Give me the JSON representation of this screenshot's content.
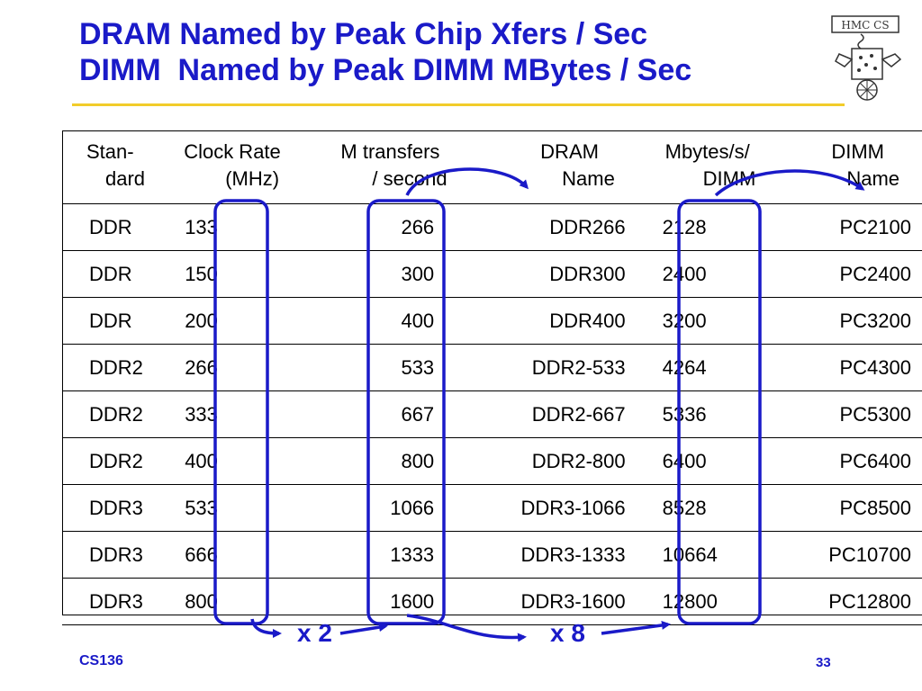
{
  "slide": {
    "title_lines": [
      "DRAM Named by Peak Chip Xfers / Sec",
      "DIMM  Named by Peak DIMM MBytes / Sec"
    ],
    "logo_text": "HMC CS"
  },
  "table": {
    "headers": [
      {
        "line1": "Stan-",
        "line2": "dard"
      },
      {
        "line1": "Clock Rate",
        "line2": "(MHz)"
      },
      {
        "line1": "M transfers",
        "line2": "/ second"
      },
      {
        "line1": "DRAM",
        "line2": "Name"
      },
      {
        "line1": "Mbytes/s/",
        "line2": "DIMM"
      },
      {
        "line1": "DIMM",
        "line2": "Name"
      }
    ],
    "rows": [
      [
        "DDR",
        "133",
        "266",
        "DDR266",
        "2128",
        "PC2100"
      ],
      [
        "DDR",
        "150",
        "300",
        "DDR300",
        "2400",
        "PC2400"
      ],
      [
        "DDR",
        "200",
        "400",
        "DDR400",
        "3200",
        "PC3200"
      ],
      [
        "DDR2",
        "266",
        "533",
        "DDR2-533",
        "4264",
        "PC4300"
      ],
      [
        "DDR2",
        "333",
        "667",
        "DDR2-667",
        "5336",
        "PC5300"
      ],
      [
        "DDR2",
        "400",
        "800",
        "DDR2-800",
        "6400",
        "PC6400"
      ],
      [
        "DDR3",
        "533",
        "1066",
        "DDR3-1066",
        "8528",
        "PC8500"
      ],
      [
        "DDR3",
        "666",
        "1333",
        "DDR3-1333",
        "10664",
        "PC10700"
      ],
      [
        "DDR3",
        "800",
        "1600",
        "DDR3-1600",
        "12800",
        "PC12800"
      ]
    ]
  },
  "annotations": {
    "multiplier_1": "x 2",
    "multiplier_2": "x 8"
  },
  "footer": {
    "course": "CS136",
    "page_number": "33"
  },
  "colors": {
    "title": "#1a1ac8",
    "rule": "#f2cc2a",
    "annotation": "#1a1ac8"
  }
}
